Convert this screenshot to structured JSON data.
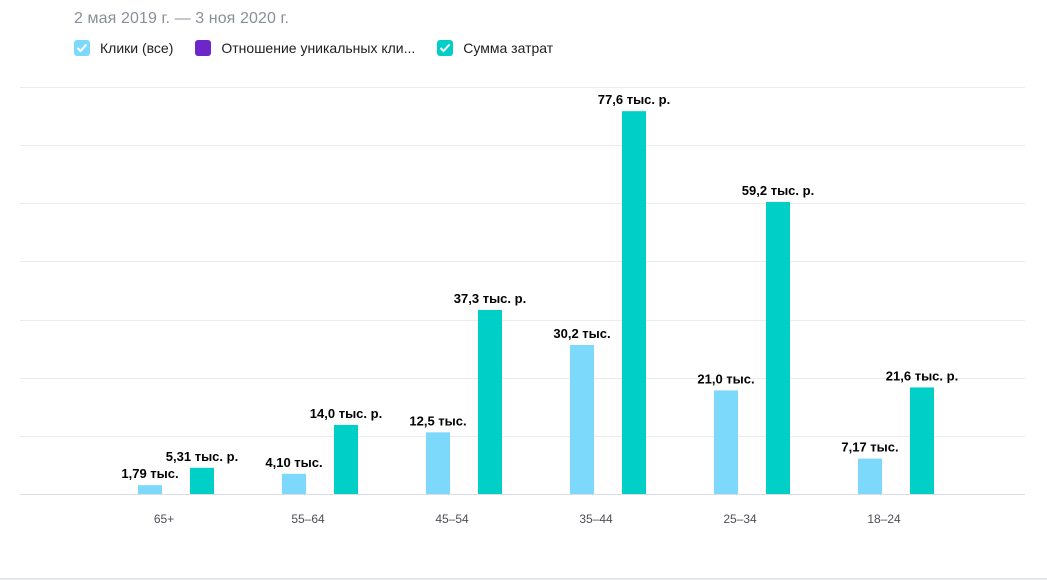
{
  "date_range": "2 мая 2019 г. — 3 ноя 2020 г.",
  "legend": [
    {
      "label": "Клики (все)",
      "color": "#7dd9fc",
      "checked": true
    },
    {
      "label": "Отношение уникальных кли...",
      "color": "#6d26c9",
      "checked": false
    },
    {
      "label": "Сумма затрат",
      "color": "#00cfc8",
      "checked": true
    }
  ],
  "chart_data": {
    "type": "bar",
    "categories": [
      "65+",
      "55–64",
      "45–54",
      "35–44",
      "25–34",
      "18–24"
    ],
    "grid": true,
    "series": [
      {
        "name": "Клики (все)",
        "color": "#7dd9fc",
        "values": [
          1790,
          4100,
          12500,
          30200,
          21000,
          7170
        ],
        "labels": [
          "1,79 тыс.",
          "4,10 тыс.",
          "12,5 тыс.",
          "30,2 тыс.",
          "21,0 тыс.",
          "7,17 тыс."
        ]
      },
      {
        "name": "Сумма затрат",
        "color": "#00cfc8",
        "values": [
          5310,
          14000,
          37300,
          77600,
          59200,
          21600
        ],
        "labels": [
          "5,31 тыс. р.",
          "14,0 тыс. р.",
          "37,3 тыс. р.",
          "77,6 тыс. р.",
          "59,2 тыс. р.",
          "21,6 тыс. р."
        ]
      }
    ]
  }
}
